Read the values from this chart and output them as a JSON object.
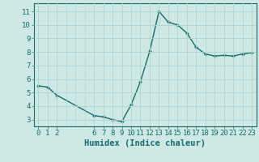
{
  "x": [
    0,
    1,
    2,
    6,
    7,
    8,
    9,
    10,
    11,
    12,
    13,
    14,
    15,
    16,
    17,
    18,
    19,
    20,
    21,
    22,
    23
  ],
  "y": [
    5.5,
    5.4,
    4.8,
    3.3,
    3.2,
    3.0,
    2.85,
    4.1,
    5.8,
    8.05,
    11.0,
    10.2,
    10.0,
    9.4,
    8.35,
    7.85,
    7.7,
    7.75,
    7.7,
    7.85,
    7.95
  ],
  "bg_color": "#cde8e5",
  "line_color": "#1a6b6b",
  "grid_color": "#b0d4d0",
  "xlabel": "Humidex (Indice chaleur)",
  "xticks": [
    0,
    1,
    2,
    6,
    7,
    8,
    9,
    10,
    11,
    12,
    13,
    14,
    15,
    16,
    17,
    18,
    19,
    20,
    21,
    22,
    23
  ],
  "yticks": [
    3,
    4,
    5,
    6,
    7,
    8,
    9,
    10,
    11
  ],
  "ylim": [
    2.5,
    11.6
  ],
  "xlim": [
    -0.5,
    23.5
  ],
  "xlabel_fontsize": 7.5,
  "tick_fontsize": 6.5,
  "linewidth": 1.0,
  "markersize": 3.5
}
